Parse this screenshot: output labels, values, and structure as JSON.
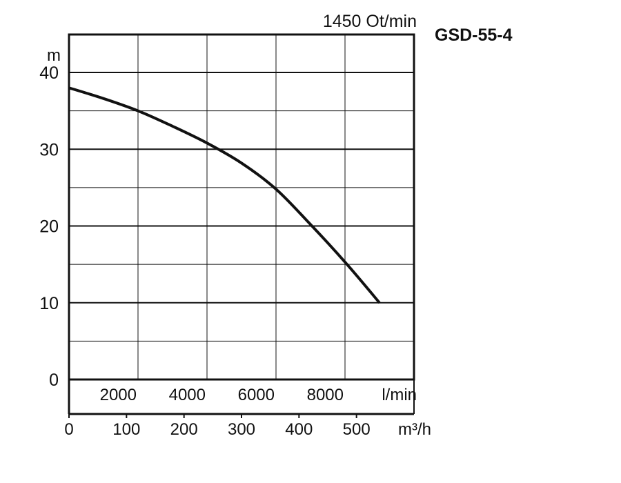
{
  "chart_data": {
    "type": "line",
    "title": "GSD-55-4",
    "subtitle": "1450 Ot/min",
    "ylabel": "m",
    "xlabel": "l/min",
    "xlabel_secondary": "m³/h",
    "x_ticks": [
      "2000",
      "4000",
      "6000",
      "8000"
    ],
    "x_secondary_ticks": [
      "0",
      "100",
      "200",
      "300",
      "400",
      "500"
    ],
    "y_ticks": [
      "0",
      "10",
      "20",
      "30",
      "40"
    ],
    "xlim": [
      0,
      10000
    ],
    "ylim": [
      0,
      40
    ],
    "grid": true,
    "series": [
      {
        "x": [
          0,
          1000,
          2000,
          3000,
          4000,
          5000,
          6000,
          7000,
          8000,
          9000
        ],
        "y": [
          38,
          36.6,
          35,
          33,
          30.8,
          28.2,
          24.8,
          20.2,
          15.3,
          10
        ]
      }
    ]
  },
  "colors": {
    "line": "#111111",
    "grid": "#111111",
    "background": "#ffffff"
  }
}
